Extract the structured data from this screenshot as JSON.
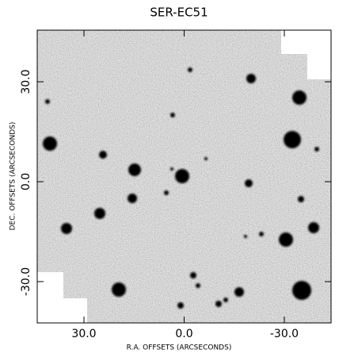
{
  "chart_data": {
    "type": "image",
    "title": "SER-EC51",
    "x_label": "R.A. OFFSETS (ARCSECONDS)",
    "y_label": "DEC. OFFSETS (ARCSECONDS)",
    "xlim": [
      44,
      -44
    ],
    "ylim": [
      -42.4,
      45.5
    ],
    "xticks": [
      {
        "value": 30,
        "label": "30.0"
      },
      {
        "value": 0,
        "label": "0.0"
      },
      {
        "value": -30,
        "label": "-30.0"
      }
    ],
    "yticks": [
      {
        "value": 30,
        "label": "30.0"
      },
      {
        "value": 0,
        "label": "0.0"
      },
      {
        "value": -30,
        "label": "-30.0"
      }
    ]
  }
}
